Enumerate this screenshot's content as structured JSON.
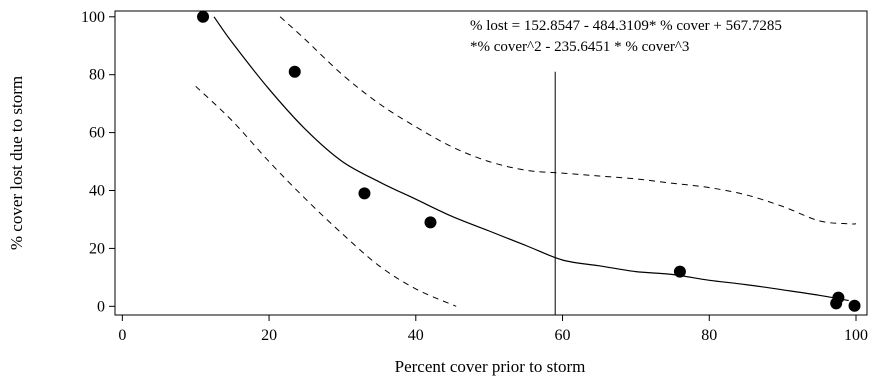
{
  "chart_data": {
    "type": "scatter",
    "title": "",
    "xlabel": "Percent cover prior to storm",
    "ylabel": "% cover lost due to storm",
    "xlim": [
      -1,
      101.5
    ],
    "ylim": [
      -3,
      102
    ],
    "x_ticks": [
      0,
      20,
      40,
      60,
      80,
      100
    ],
    "y_ticks": [
      0,
      20,
      40,
      60,
      80,
      100
    ],
    "grid": false,
    "legend": "none",
    "annotation": {
      "line1": "% lost = 152.8547 - 484.3109* % cover + 567.7285",
      "line2": "*% cover^2 - 235.6451 * % cover^3"
    },
    "vertical_line_x": 59,
    "points": [
      {
        "x": 11,
        "y": 100
      },
      {
        "x": 23.5,
        "y": 81
      },
      {
        "x": 33,
        "y": 39
      },
      {
        "x": 42,
        "y": 29
      },
      {
        "x": 76,
        "y": 12
      },
      {
        "x": 97.3,
        "y": 1
      },
      {
        "x": 97.6,
        "y": 3
      },
      {
        "x": 99.8,
        "y": 0.2
      }
    ],
    "fit_line": {
      "x": [
        12.5,
        15,
        20,
        25,
        30,
        35,
        40,
        45,
        50,
        55,
        60,
        65,
        70,
        75,
        80,
        85,
        90,
        95,
        99
      ],
      "y": [
        100,
        91,
        75,
        61,
        50,
        43,
        37,
        31,
        26,
        21,
        16,
        14,
        12,
        11,
        9,
        7.5,
        5.7,
        3.8,
        2
      ]
    },
    "upper_band": {
      "x": [
        21.5,
        25,
        30,
        35,
        40,
        45,
        50,
        55,
        60,
        65,
        70,
        75,
        80,
        85,
        90,
        95,
        99,
        100
      ],
      "y": [
        100,
        92,
        80,
        70,
        62,
        55,
        50,
        47,
        46,
        45,
        44,
        42.5,
        41,
        38.5,
        34.5,
        29.5,
        28.5,
        28.5
      ]
    },
    "lower_band": {
      "x": [
        10,
        15,
        20,
        25,
        30,
        35,
        40,
        45.5
      ],
      "y": [
        76,
        64,
        50,
        37,
        25,
        14,
        6,
        0
      ]
    }
  }
}
